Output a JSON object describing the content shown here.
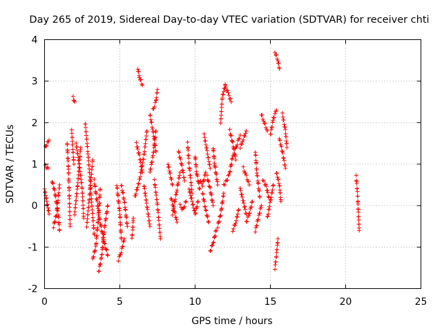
{
  "chart_data": {
    "type": "scatter",
    "title": "Day 265 of 2019, Sidereal Day-to-day VTEC variation (SDTVAR) for receiver chti",
    "xlabel": "GPS time / hours",
    "ylabel": "SDTVAR / TECUs",
    "xlim": [
      0,
      25
    ],
    "ylim": [
      -2,
      4
    ],
    "xticks": [
      0,
      5,
      10,
      15,
      20,
      25
    ],
    "yticks": [
      -2,
      -1,
      0,
      1,
      2,
      3,
      4
    ],
    "xtick_labels": [
      "0",
      "5",
      "10",
      "15",
      "20",
      "25"
    ],
    "ytick_labels": [
      "-2",
      "-1",
      "0",
      "1",
      "2",
      "3",
      "4"
    ],
    "grid": true,
    "marker": "+",
    "color": "#ff0000",
    "series": [
      {
        "name": "SDTVAR",
        "tracks": [
          {
            "x": [
              0.05,
              0.3
            ],
            "y": [
              1.4,
              1.58
            ]
          },
          {
            "x": [
              0.05,
              0.25
            ],
            "y": [
              0.95,
              0.9
            ]
          },
          {
            "x": [
              0.0,
              0.15,
              0.3
            ],
            "y": [
              0.4,
              0.1,
              -0.2
            ]
          },
          {
            "x": [
              0.5,
              0.7,
              0.9,
              1.0
            ],
            "y": [
              0.6,
              0.3,
              -0.2,
              -0.6
            ]
          },
          {
            "x": [
              0.6,
              0.8,
              1.0
            ],
            "y": [
              -0.5,
              -0.2,
              0.5
            ]
          },
          {
            "x": [
              1.5,
              1.6,
              1.7
            ],
            "y": [
              1.5,
              0.8,
              -0.5
            ]
          },
          {
            "x": [
              1.8,
              1.95
            ],
            "y": [
              1.8,
              1.0
            ]
          },
          {
            "x": [
              1.9,
              2.0
            ],
            "y": [
              2.6,
              2.5
            ]
          },
          {
            "x": [
              2.1,
              2.3,
              2.5,
              2.6
            ],
            "y": [
              1.5,
              1.0,
              0.4,
              -0.3
            ]
          },
          {
            "x": [
              2.0,
              2.2,
              2.4
            ],
            "y": [
              -0.2,
              0.5,
              1.4
            ]
          },
          {
            "x": [
              2.7,
              2.9,
              3.1,
              3.3
            ],
            "y": [
              2.0,
              1.2,
              0.2,
              -0.7
            ]
          },
          {
            "x": [
              2.8,
              3.0,
              3.2
            ],
            "y": [
              -0.5,
              0.3,
              1.1
            ]
          },
          {
            "x": [
              3.2,
              3.4,
              3.6,
              3.7
            ],
            "y": [
              -1.3,
              -1.0,
              -0.2,
              0.4
            ]
          },
          {
            "x": [
              3.3,
              3.6,
              3.9,
              4.2
            ],
            "y": [
              0.6,
              -0.2,
              -0.8,
              -1.2
            ]
          },
          {
            "x": [
              3.6,
              3.8,
              4.0,
              4.2
            ],
            "y": [
              -1.6,
              -1.2,
              -0.5,
              0.0
            ]
          },
          {
            "x": [
              4.8,
              5.0,
              5.1
            ],
            "y": [
              0.5,
              -0.2,
              -0.8
            ]
          },
          {
            "x": [
              4.9,
              5.1,
              5.3
            ],
            "y": [
              -1.3,
              -1.1,
              -0.8
            ]
          },
          {
            "x": [
              5.1,
              5.3,
              5.5
            ],
            "y": [
              0.5,
              0.1,
              -0.5
            ]
          },
          {
            "x": [
              5.8,
              5.85,
              5.9
            ],
            "y": [
              -0.8,
              -0.6,
              -0.3
            ]
          },
          {
            "x": [
              6.0,
              6.3,
              6.6,
              6.8
            ],
            "y": [
              0.2,
              0.6,
              1.2,
              1.8
            ]
          },
          {
            "x": [
              6.1,
              6.3,
              6.5
            ],
            "y": [
              1.5,
              1.2,
              0.8
            ]
          },
          {
            "x": [
              6.2,
              6.3,
              6.5
            ],
            "y": [
              3.3,
              3.1,
              2.9
            ]
          },
          {
            "x": [
              6.6,
              6.8,
              7.0
            ],
            "y": [
              0.5,
              0.0,
              -0.5
            ]
          },
          {
            "x": [
              7.0,
              7.2,
              7.4
            ],
            "y": [
              2.2,
              1.8,
              1.3
            ]
          },
          {
            "x": [
              7.0,
              7.2,
              7.4
            ],
            "y": [
              0.8,
              1.2,
              1.8
            ]
          },
          {
            "x": [
              7.2,
              7.4,
              7.5
            ],
            "y": [
              2.3,
              2.5,
              2.8
            ]
          },
          {
            "x": [
              7.3,
              7.5,
              7.7
            ],
            "y": [
              0.6,
              0.0,
              -0.8
            ]
          },
          {
            "x": [
              8.2,
              8.5
            ],
            "y": [
              1.0,
              0.5
            ]
          },
          {
            "x": [
              8.4,
              8.6,
              8.8
            ],
            "y": [
              0.2,
              -0.1,
              -0.4
            ]
          },
          {
            "x": [
              8.5,
              8.6,
              8.8,
              9.0
            ],
            "y": [
              -0.2,
              0.0,
              0.4,
              0.8
            ]
          },
          {
            "x": [
              8.9,
              9.1,
              9.3
            ],
            "y": [
              1.3,
              1.0,
              0.6
            ]
          },
          {
            "x": [
              9.0,
              9.2,
              9.4
            ],
            "y": [
              0.0,
              -0.1,
              0.1
            ]
          },
          {
            "x": [
              9.5,
              9.6,
              9.8
            ],
            "y": [
              1.5,
              1.0,
              0.3
            ]
          },
          {
            "x": [
              9.6,
              9.8,
              10.0,
              10.2
            ],
            "y": [
              0.4,
              0.1,
              -0.2,
              0.1
            ]
          },
          {
            "x": [
              10.0,
              10.1,
              10.3
            ],
            "y": [
              1.2,
              0.8,
              0.4
            ]
          },
          {
            "x": [
              10.3,
              10.5,
              10.7
            ],
            "y": [
              0.6,
              0.5,
              0.8
            ]
          },
          {
            "x": [
              10.5,
              10.7,
              10.9
            ],
            "y": [
              0.3,
              -0.1,
              -0.4
            ]
          },
          {
            "x": [
              10.6,
              10.8,
              11.0
            ],
            "y": [
              1.7,
              1.3,
              0.9
            ]
          },
          {
            "x": [
              10.8,
              11.0,
              11.2
            ],
            "y": [
              0.7,
              0.4,
              0.0
            ]
          },
          {
            "x": [
              11.0,
              11.2,
              11.4
            ],
            "y": [
              -1.1,
              -0.9,
              -0.6
            ]
          },
          {
            "x": [
              11.2,
              11.3,
              11.5
            ],
            "y": [
              1.4,
              1.0,
              0.5
            ]
          },
          {
            "x": [
              11.5,
              11.7,
              11.9
            ],
            "y": [
              -0.5,
              -0.2,
              0.3
            ]
          },
          {
            "x": [
              11.7,
              11.8,
              12.0
            ],
            "y": [
              2.0,
              2.6,
              2.9
            ]
          },
          {
            "x": [
              12.0,
              12.2,
              12.4
            ],
            "y": [
              2.9,
              2.7,
              2.5
            ]
          },
          {
            "x": [
              12.3,
              12.5,
              12.7
            ],
            "y": [
              1.8,
              1.5,
              1.1
            ]
          },
          {
            "x": [
              11.9,
              12.1,
              12.3,
              12.5
            ],
            "y": [
              0.5,
              0.6,
              0.8,
              1.2
            ]
          },
          {
            "x": [
              12.5,
              12.7,
              12.9
            ],
            "y": [
              -0.6,
              -0.4,
              -0.1
            ]
          },
          {
            "x": [
              12.6,
              12.8,
              13.0
            ],
            "y": [
              1.3,
              1.5,
              1.7
            ]
          },
          {
            "x": [
              13.0,
              13.2,
              13.4
            ],
            "y": [
              1.4,
              1.6,
              1.8
            ]
          },
          {
            "x": [
              13.0,
              13.2,
              13.4
            ],
            "y": [
              0.4,
              0.1,
              -0.2
            ]
          },
          {
            "x": [
              13.2,
              13.4,
              13.6
            ],
            "y": [
              0.9,
              0.7,
              0.5
            ]
          },
          {
            "x": [
              13.4,
              13.6,
              13.8
            ],
            "y": [
              -0.4,
              -0.2,
              0.1
            ]
          },
          {
            "x": [
              14.0,
              14.1,
              14.3
            ],
            "y": [
              1.3,
              0.8,
              0.2
            ]
          },
          {
            "x": [
              14.0,
              14.2,
              14.4
            ],
            "y": [
              -0.6,
              -0.3,
              0.0
            ]
          },
          {
            "x": [
              14.4,
              14.6,
              14.8
            ],
            "y": [
              2.2,
              2.0,
              1.8
            ]
          },
          {
            "x": [
              14.5,
              14.7,
              14.9
            ],
            "y": [
              0.6,
              0.5,
              0.2
            ]
          },
          {
            "x": [
              14.8,
              15.0,
              15.2
            ],
            "y": [
              -0.3,
              0.1,
              0.5
            ]
          },
          {
            "x": [
              15.0,
              15.2,
              15.4
            ],
            "y": [
              1.7,
              2.1,
              2.3
            ]
          },
          {
            "x": [
              15.3,
              15.5,
              15.6
            ],
            "y": [
              3.7,
              3.5,
              3.3
            ]
          },
          {
            "x": [
              15.3,
              15.4,
              15.5
            ],
            "y": [
              -1.5,
              -1.2,
              -0.8
            ]
          },
          {
            "x": [
              15.4,
              15.6,
              15.7
            ],
            "y": [
              0.8,
              0.5,
              0.1
            ]
          },
          {
            "x": [
              15.6,
              15.8,
              16.0
            ],
            "y": [
              1.6,
              1.3,
              0.9
            ]
          },
          {
            "x": [
              15.8,
              16.0,
              16.1
            ],
            "y": [
              2.2,
              1.8,
              1.4
            ]
          },
          {
            "x": [
              20.7,
              20.8,
              20.9
            ],
            "y": [
              0.7,
              0.2,
              -0.6
            ]
          }
        ]
      }
    ]
  }
}
